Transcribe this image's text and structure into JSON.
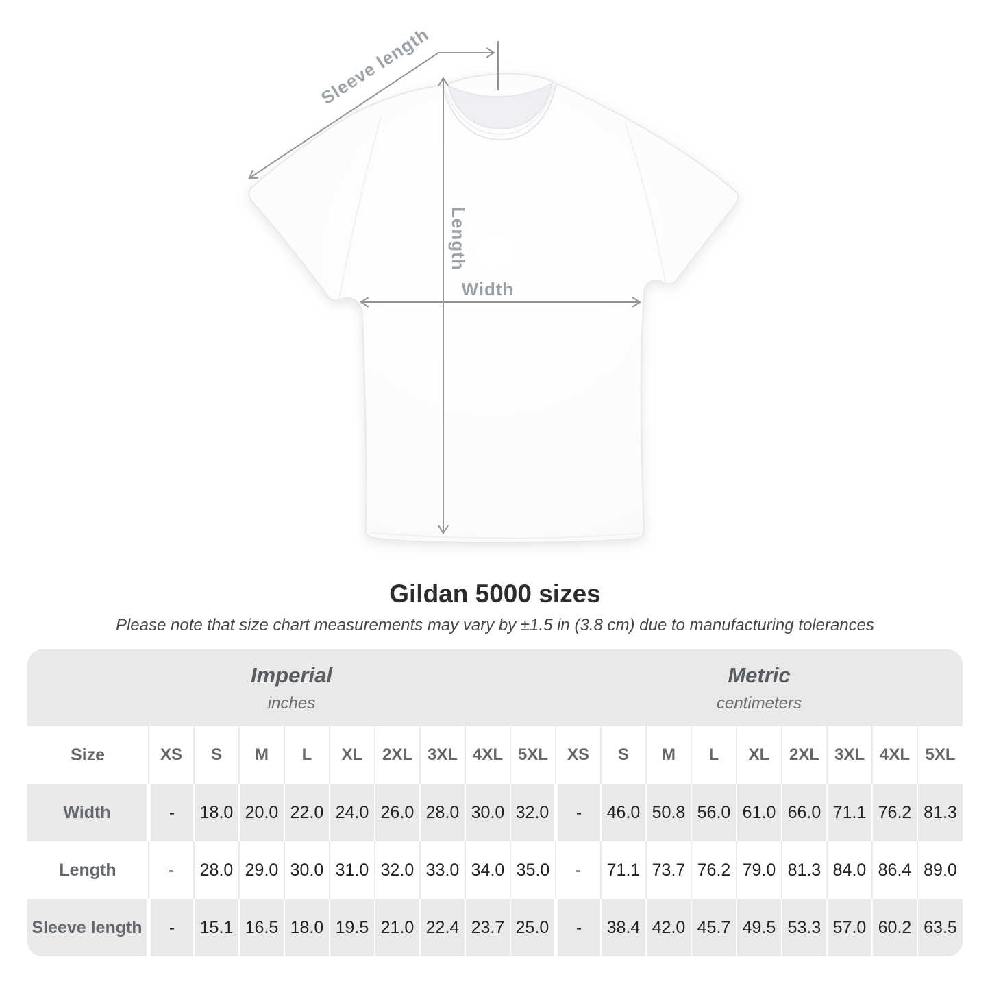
{
  "diagram": {
    "sleeve_length_label": "Sleeve length",
    "length_label": "Length",
    "width_label": "Width",
    "line_color": "#8f9499",
    "label_color": "#9ba1a6",
    "shirt_color": "#ffffff"
  },
  "title": "Gildan 5000 sizes",
  "note": "Please note that size chart measurements may vary by ±1.5 in (3.8 cm) due to manufacturing tolerances",
  "table": {
    "systems": [
      {
        "name": "Imperial",
        "unit": "inches"
      },
      {
        "name": "Metric",
        "unit": "centimeters"
      }
    ],
    "size_header": "Size",
    "sizes": [
      "XS",
      "S",
      "M",
      "L",
      "XL",
      "2XL",
      "3XL",
      "4XL",
      "5XL"
    ],
    "rows": [
      {
        "label": "Width",
        "imperial": [
          "-",
          "18.0",
          "20.0",
          "22.0",
          "24.0",
          "26.0",
          "28.0",
          "30.0",
          "32.0"
        ],
        "metric": [
          "-",
          "46.0",
          "50.8",
          "56.0",
          "61.0",
          "66.0",
          "71.1",
          "76.2",
          "81.3"
        ]
      },
      {
        "label": "Length",
        "imperial": [
          "-",
          "28.0",
          "29.0",
          "30.0",
          "31.0",
          "32.0",
          "33.0",
          "34.0",
          "35.0"
        ],
        "metric": [
          "-",
          "71.1",
          "73.7",
          "76.2",
          "79.0",
          "81.3",
          "84.0",
          "86.4",
          "89.0"
        ]
      },
      {
        "label": "Sleeve length",
        "imperial": [
          "-",
          "15.1",
          "16.5",
          "18.0",
          "19.5",
          "21.0",
          "22.4",
          "23.7",
          "25.0"
        ],
        "metric": [
          "-",
          "38.4",
          "42.0",
          "45.7",
          "49.5",
          "53.3",
          "57.0",
          "60.2",
          "63.5"
        ]
      }
    ],
    "colors": {
      "stripe": "#e9e9e9",
      "white": "#ffffff",
      "header_text": "#64686c",
      "value_text": "#222222"
    }
  }
}
